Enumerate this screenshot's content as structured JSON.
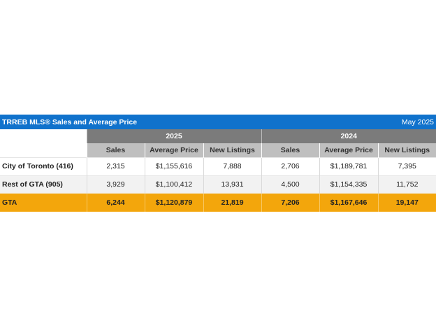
{
  "title": "TRREB MLS® Sales and Average Price",
  "date": "May 2025",
  "years": [
    "2025",
    "2024"
  ],
  "columns": [
    "Sales",
    "Average Price",
    "New Listings",
    "Sales",
    "Average Price",
    "New Listings"
  ],
  "rows": [
    {
      "label": "City of Toronto (416)",
      "values": [
        "2,315",
        "$1,155,616",
        "7,888",
        "2,706",
        "$1,189,781",
        "7,395"
      ]
    },
    {
      "label": "Rest of GTA (905)",
      "values": [
        "3,929",
        "$1,100,412",
        "13,931",
        "4,500",
        "$1,154,335",
        "11,752"
      ]
    }
  ],
  "total": {
    "label": "GTA",
    "values": [
      "6,244",
      "$1,120,879",
      "21,819",
      "7,206",
      "$1,167,646",
      "19,147"
    ]
  },
  "colors": {
    "title_bar": "#1072cc",
    "year_header": "#7b7b7b",
    "column_header": "#bfbfbf",
    "total_row": "#f3a60c"
  }
}
